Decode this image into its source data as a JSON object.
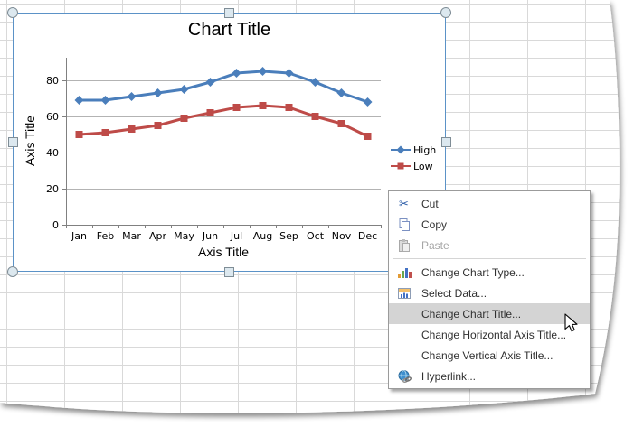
{
  "chart": {
    "title": "Chart Title",
    "y_axis_title": "Axis Title",
    "x_axis_title": "Axis Title"
  },
  "chart_data": {
    "type": "line",
    "title": "Chart Title",
    "xlabel": "Axis Title",
    "ylabel": "Axis Title",
    "categories": [
      "Jan",
      "Feb",
      "Mar",
      "Apr",
      "May",
      "Jun",
      "Jul",
      "Aug",
      "Sep",
      "Oct",
      "Nov",
      "Dec"
    ],
    "series": [
      {
        "name": "High",
        "marker": "diamond",
        "color": "#4A7EBB",
        "values": [
          69,
          69,
          71,
          73,
          75,
          79,
          84,
          85,
          84,
          79,
          73,
          68
        ]
      },
      {
        "name": "Low",
        "marker": "square",
        "color": "#BE4B48",
        "values": [
          50,
          51,
          53,
          55,
          59,
          62,
          65,
          66,
          65,
          60,
          56,
          49
        ]
      }
    ],
    "yticks": [
      0,
      20,
      40,
      60,
      80
    ],
    "ylim": [
      0,
      90
    ],
    "grid": true,
    "legend_position": "middle-right"
  },
  "context_menu": {
    "items": [
      {
        "label": "Cut",
        "icon": "scissors-icon",
        "enabled": true
      },
      {
        "label": "Copy",
        "icon": "copy-icon",
        "enabled": true
      },
      {
        "label": "Paste",
        "icon": "paste-icon",
        "enabled": false
      },
      {
        "label": "Change Chart Type...",
        "icon": "chart-type-icon",
        "enabled": true
      },
      {
        "label": "Select Data...",
        "icon": "select-data-icon",
        "enabled": true
      },
      {
        "label": "Change Chart Title...",
        "icon": null,
        "enabled": true,
        "highlighted": true
      },
      {
        "label": "Change Horizontal Axis Title...",
        "icon": null,
        "enabled": true
      },
      {
        "label": "Change Vertical Axis Title...",
        "icon": null,
        "enabled": true
      },
      {
        "label": "Hyperlink...",
        "icon": "hyperlink-icon",
        "enabled": true
      }
    ]
  },
  "selection": {
    "frame_color": "#5B92C7",
    "handle_fill": "#DCE8EF",
    "handle_border": "#7F8D96"
  },
  "colors": {
    "sheet_grid_line": "#D9D9D9",
    "chart_gridline": "#B3B3B3",
    "axis_line": "#808080",
    "menu_highlight": "#D4D4D4"
  }
}
